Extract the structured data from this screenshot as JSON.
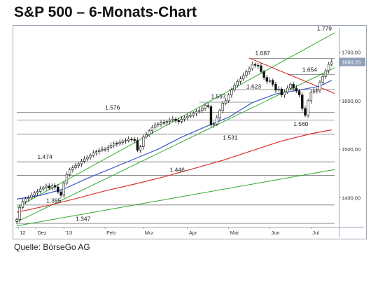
{
  "header": {
    "title": "S&P 500 – 6-Monats-Chart"
  },
  "footer": {
    "source": "Quelle: BörseGo AG"
  },
  "colors": {
    "plot_bg": "#ffffff",
    "frame": "#9aa6b4",
    "candle": "#111111",
    "ma_blue": "#3a56c8",
    "ma_red": "#d83030",
    "trend_green": "#2ea82e",
    "resistance_red": "#d02020",
    "level_gray": "#777777",
    "last_price_box": "#8fa0b8"
  },
  "chart_data": {
    "type": "candlestick",
    "title": "S&P 500 – 6-Monats-Chart",
    "ylim": [
      1340,
      1750
    ],
    "y_ticks": [
      {
        "value": 1400,
        "label": "1400,00"
      },
      {
        "value": 1500,
        "label": "1500,00"
      },
      {
        "value": 1600,
        "label": "1600,00"
      },
      {
        "value": 1700,
        "label": "1700,00"
      }
    ],
    "last_price_label": "1680,20",
    "x_ticks": [
      "12",
      "Dez",
      "'13",
      "Feb",
      "Mrz",
      "Apr",
      "Mai",
      "Jun",
      "Jul"
    ],
    "x_tick_pos": [
      0.5,
      6.5,
      16,
      30,
      43,
      58,
      72,
      86,
      100
    ],
    "n_days": 108,
    "closes": [
      1355,
      1380,
      1392,
      1398,
      1400,
      1405,
      1410,
      1413,
      1418,
      1421,
      1424,
      1420,
      1425,
      1422,
      1412,
      1405,
      1430,
      1448,
      1458,
      1462,
      1466,
      1470,
      1475,
      1480,
      1484,
      1487,
      1492,
      1495,
      1498,
      1500,
      1500,
      1504,
      1508,
      1512,
      1511,
      1514,
      1517,
      1518,
      1521,
      1520,
      1518,
      1498,
      1505,
      1525,
      1530,
      1538,
      1545,
      1550,
      1552,
      1555,
      1554,
      1557,
      1560,
      1562,
      1559,
      1557,
      1562,
      1565,
      1568,
      1570,
      1574,
      1578,
      1580,
      1585,
      1590,
      1588,
      1550,
      1552,
      1565,
      1580,
      1595,
      1600,
      1612,
      1622,
      1632,
      1640,
      1645,
      1652,
      1660,
      1666,
      1675,
      1673,
      1672,
      1660,
      1648,
      1640,
      1642,
      1634,
      1622,
      1624,
      1612,
      1618,
      1626,
      1634,
      1626,
      1620,
      1612,
      1584,
      1570,
      1600,
      1618,
      1620,
      1622,
      1638,
      1650,
      1662,
      1675,
      1680
    ],
    "moving_averages": [
      {
        "color": "blue",
        "values": [
          [
            0,
            1397
          ],
          [
            8,
            1405
          ],
          [
            16,
            1418
          ],
          [
            24,
            1440
          ],
          [
            32,
            1460
          ],
          [
            40,
            1480
          ],
          [
            48,
            1500
          ],
          [
            56,
            1525
          ],
          [
            64,
            1546
          ],
          [
            72,
            1566
          ],
          [
            80,
            1596
          ],
          [
            88,
            1614
          ],
          [
            96,
            1622
          ],
          [
            103,
            1630
          ],
          [
            107,
            1642
          ]
        ]
      },
      {
        "color": "red",
        "values": [
          [
            0,
            1370
          ],
          [
            10,
            1383
          ],
          [
            20,
            1398
          ],
          [
            30,
            1414
          ],
          [
            40,
            1428
          ],
          [
            50,
            1443
          ],
          [
            60,
            1460
          ],
          [
            70,
            1477
          ],
          [
            80,
            1497
          ],
          [
            90,
            1517
          ],
          [
            100,
            1532
          ],
          [
            107,
            1540
          ]
        ]
      }
    ],
    "trend_lines": [
      {
        "color": "green",
        "from": [
          0,
          1380
        ],
        "to": [
          108,
          1740
        ]
      },
      {
        "color": "green",
        "from": [
          0,
          1350
        ],
        "to": [
          108,
          1668
        ]
      },
      {
        "color": "green",
        "from": [
          0,
          1342
        ],
        "to": [
          108,
          1458
        ]
      },
      {
        "color": "red",
        "from": [
          79,
          1688
        ],
        "to": [
          108,
          1615
        ]
      }
    ],
    "levels": [
      {
        "value": 1576,
        "from": 0,
        "to": 108
      },
      {
        "value": 1560,
        "from": 0,
        "to": 108
      },
      {
        "value": 1531,
        "from": 0,
        "to": 108
      },
      {
        "value": 1474,
        "from": 0,
        "to": 108
      },
      {
        "value": 1446,
        "from": 0,
        "to": 108
      },
      {
        "value": 1385,
        "from": 0,
        "to": 108
      },
      {
        "value": 1347,
        "from": 0,
        "to": 108
      },
      {
        "value": 1687,
        "from": 79,
        "to": 108
      },
      {
        "value": 1654,
        "from": 92,
        "to": 108
      },
      {
        "value": 1623,
        "from": 72,
        "to": 108
      },
      {
        "value": 1597,
        "from": 62,
        "to": 80
      }
    ],
    "annotations": [
      {
        "label": "1.779",
        "x": 102,
        "y": 1745
      },
      {
        "label": "1.687",
        "x": 81,
        "y": 1694
      },
      {
        "label": "1.654",
        "x": 97,
        "y": 1660
      },
      {
        "label": "1.623",
        "x": 78,
        "y": 1625
      },
      {
        "label": "1.597",
        "x": 66,
        "y": 1605
      },
      {
        "label": "1.576",
        "x": 30,
        "y": 1582
      },
      {
        "label": "1.560",
        "x": 94,
        "y": 1548
      },
      {
        "label": "1.531",
        "x": 70,
        "y": 1520
      },
      {
        "label": "1.474",
        "x": 7,
        "y": 1480
      },
      {
        "label": "1.446",
        "x": 52,
        "y": 1453
      },
      {
        "label": "1.385",
        "x": 10,
        "y": 1390
      },
      {
        "label": "1.347",
        "x": 20,
        "y": 1352
      }
    ]
  }
}
